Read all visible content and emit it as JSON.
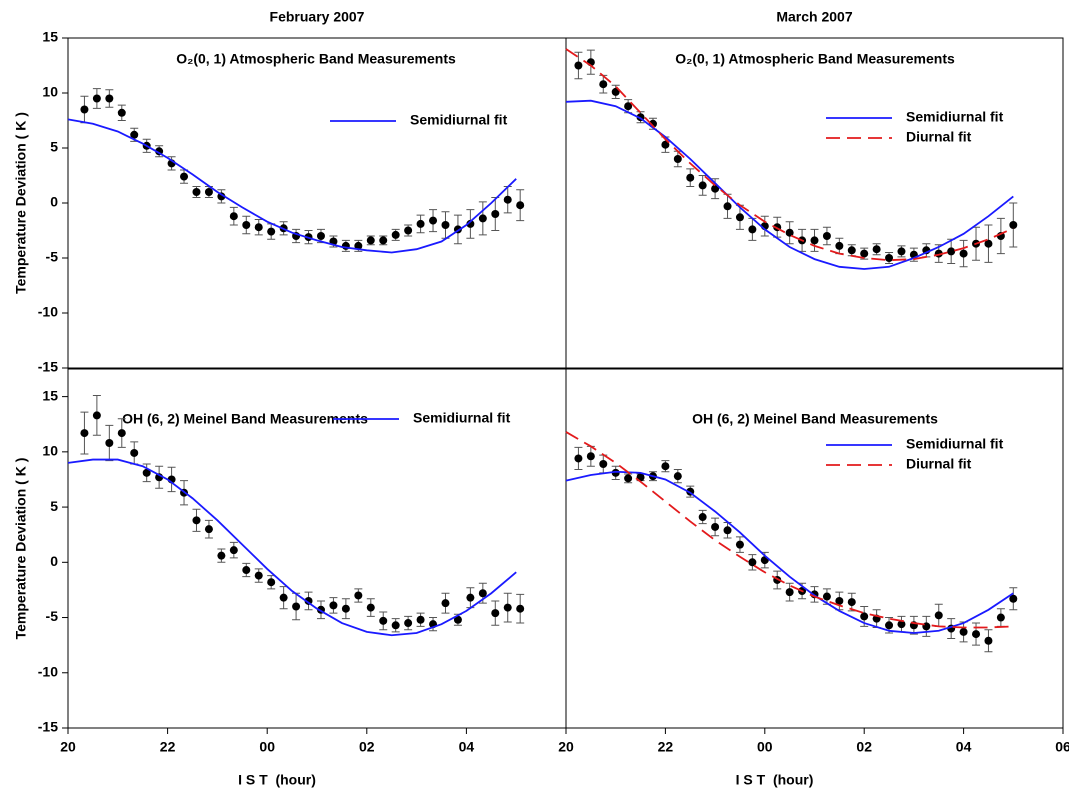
{
  "chart_data": [
    {
      "type": "scatter",
      "title": "February 2007",
      "annotation": "O₂(0, 1) Atmospheric Band Measurements",
      "ylabel": "Temperature Deviation ( K )",
      "xlim": [
        20,
        30
      ],
      "ylim": [
        -15,
        15
      ],
      "yticks": [
        -15,
        -10,
        -5,
        0,
        5,
        10,
        15
      ],
      "series": [
        {
          "color": "#000000",
          "x": [
            20.33,
            20.58,
            20.83,
            21.08,
            21.33,
            21.58,
            21.83,
            22.08,
            22.33,
            22.58,
            22.83,
            23.08,
            23.33,
            23.58,
            23.83,
            24.08,
            24.33,
            24.58,
            24.83,
            25.08,
            25.33,
            25.58,
            25.83,
            26.08,
            26.33,
            26.58,
            26.83,
            27.08,
            27.33,
            27.58,
            27.83,
            28.08,
            28.33,
            28.58,
            28.83,
            29.08
          ],
          "values": [
            8.5,
            9.5,
            9.5,
            8.2,
            6.2,
            5.2,
            4.7,
            3.6,
            2.4,
            1.0,
            1.0,
            0.6,
            -1.2,
            -2.0,
            -2.2,
            -2.6,
            -2.3,
            -3.0,
            -3.1,
            -3.0,
            -3.5,
            -3.9,
            -3.9,
            -3.4,
            -3.4,
            -2.9,
            -2.5,
            -1.9,
            -1.6,
            -2.0,
            -2.4,
            -1.9,
            -1.4,
            -1.0,
            0.3,
            -0.2
          ],
          "errors": [
            1.2,
            0.9,
            0.8,
            0.7,
            0.6,
            0.6,
            0.5,
            0.6,
            0.6,
            0.5,
            0.5,
            0.6,
            0.8,
            0.8,
            0.7,
            0.7,
            0.6,
            0.6,
            0.6,
            0.6,
            0.5,
            0.5,
            0.5,
            0.4,
            0.4,
            0.5,
            0.5,
            0.8,
            1.0,
            1.2,
            1.3,
            1.3,
            1.5,
            1.5,
            1.2,
            1.4
          ]
        },
        {
          "name": "Semidiurnal fit",
          "color": "#1a1aff",
          "x": [
            20,
            20.5,
            21,
            21.5,
            22,
            22.5,
            23,
            23.5,
            24,
            24.5,
            25,
            25.5,
            26,
            26.5,
            27,
            27.5,
            28,
            28.5,
            29
          ],
          "values": [
            7.6,
            7.2,
            6.5,
            5.4,
            4.1,
            2.6,
            1.0,
            -0.4,
            -1.7,
            -2.7,
            -3.4,
            -4.0,
            -4.3,
            -4.5,
            -4.2,
            -3.5,
            -2.0,
            0.0,
            2.2
          ]
        }
      ]
    },
    {
      "type": "scatter",
      "title": "March 2007",
      "annotation": "O₂(0, 1) Atmospheric Band Measurements",
      "xlim": [
        20,
        30
      ],
      "ylim": [
        -15,
        15
      ],
      "series": [
        {
          "color": "#000000",
          "x": [
            20.25,
            20.5,
            20.75,
            21,
            21.25,
            21.5,
            21.75,
            22,
            22.25,
            22.5,
            22.75,
            23,
            23.25,
            23.5,
            23.75,
            24,
            24.25,
            24.5,
            24.75,
            25,
            25.25,
            25.5,
            25.75,
            26,
            26.25,
            26.5,
            26.75,
            27,
            27.25,
            27.5,
            27.75,
            28,
            28.25,
            28.5,
            28.75,
            29
          ],
          "values": [
            12.5,
            12.8,
            10.8,
            10.1,
            8.8,
            7.8,
            7.2,
            5.3,
            4.0,
            2.3,
            1.6,
            1.3,
            -0.3,
            -1.3,
            -2.4,
            -2.1,
            -2.2,
            -2.7,
            -3.4,
            -3.4,
            -3.0,
            -3.9,
            -4.3,
            -4.6,
            -4.2,
            -5.0,
            -4.4,
            -4.7,
            -4.3,
            -4.6,
            -4.4,
            -4.6,
            -3.7,
            -3.7,
            -3.0,
            -2.0
          ],
          "errors": [
            1.2,
            1.1,
            0.8,
            0.6,
            0.6,
            0.5,
            0.5,
            0.7,
            0.7,
            0.8,
            0.9,
            0.9,
            1.1,
            1.1,
            1.0,
            0.9,
            0.9,
            1.0,
            1.0,
            1.0,
            0.8,
            0.7,
            0.5,
            0.5,
            0.5,
            0.5,
            0.5,
            0.6,
            0.6,
            0.8,
            1.1,
            1.2,
            1.5,
            1.7,
            1.6,
            2.0
          ]
        },
        {
          "name": "Semidiurnal fit",
          "color": "#1a1aff",
          "x": [
            20,
            20.5,
            21,
            21.5,
            22,
            22.5,
            23,
            23.5,
            24,
            24.5,
            25,
            25.5,
            26,
            26.5,
            27,
            27.5,
            28,
            28.5,
            29
          ],
          "values": [
            9.2,
            9.3,
            8.8,
            7.7,
            6.0,
            4.0,
            1.8,
            -0.4,
            -2.4,
            -4.0,
            -5.1,
            -5.8,
            -6.0,
            -5.8,
            -5.0,
            -4.0,
            -2.8,
            -1.2,
            0.6
          ]
        },
        {
          "name": "Diurnal fit",
          "color": "#e31a1c",
          "dash": true,
          "x": [
            20,
            20.5,
            21,
            21.5,
            22,
            22.5,
            23,
            23.5,
            24,
            24.5,
            25,
            25.5,
            26,
            26.5,
            27,
            27.5,
            28,
            28.5,
            29
          ],
          "values": [
            14.0,
            12.5,
            10.6,
            8.2,
            5.8,
            3.6,
            1.6,
            -0.2,
            -1.7,
            -2.9,
            -3.9,
            -4.6,
            -5.0,
            -5.2,
            -5.1,
            -4.7,
            -4.1,
            -3.3,
            -2.3
          ]
        }
      ]
    },
    {
      "type": "scatter",
      "annotation": "OH (6, 2) Meinel Band Measurements",
      "ylabel": "Temperature Deviation ( K )",
      "xlabel": "I S T  (hour)",
      "xlim": [
        20,
        30
      ],
      "ylim": [
        -15,
        17.5
      ],
      "yticks": [
        -15,
        -10,
        -5,
        0,
        5,
        10,
        15
      ],
      "xticks": [
        {
          "value": 20,
          "label": "20"
        },
        {
          "value": 22,
          "label": "22"
        },
        {
          "value": 24,
          "label": "00"
        },
        {
          "value": 26,
          "label": "02"
        },
        {
          "value": 28,
          "label": "04"
        }
      ],
      "series": [
        {
          "color": "#000000",
          "x": [
            20.33,
            20.58,
            20.83,
            21.08,
            21.33,
            21.58,
            21.83,
            22.08,
            22.33,
            22.58,
            22.83,
            23.08,
            23.33,
            23.58,
            23.83,
            24.08,
            24.33,
            24.58,
            24.83,
            25.08,
            25.33,
            25.58,
            25.83,
            26.08,
            26.33,
            26.58,
            26.83,
            27.08,
            27.33,
            27.58,
            27.83,
            28.08,
            28.33,
            28.58,
            28.83,
            29.08
          ],
          "values": [
            11.7,
            13.3,
            10.8,
            11.7,
            9.9,
            8.1,
            7.7,
            7.5,
            6.3,
            3.8,
            3.0,
            0.6,
            1.1,
            -0.7,
            -1.2,
            -1.8,
            -3.2,
            -4.0,
            -3.5,
            -4.3,
            -3.9,
            -4.2,
            -3.0,
            -4.1,
            -5.3,
            -5.7,
            -5.5,
            -5.2,
            -5.6,
            -3.7,
            -5.2,
            -3.2,
            -2.8,
            -4.6,
            -4.1,
            -4.2
          ],
          "errors": [
            1.9,
            1.8,
            1.6,
            1.3,
            1.0,
            0.8,
            1.0,
            1.1,
            1.1,
            1.0,
            0.8,
            0.6,
            0.7,
            0.6,
            0.6,
            0.6,
            1.0,
            1.2,
            0.8,
            0.8,
            0.7,
            0.9,
            0.6,
            0.8,
            0.8,
            0.6,
            0.6,
            0.6,
            0.6,
            0.9,
            0.5,
            0.9,
            0.9,
            1.1,
            1.3,
            1.3
          ]
        },
        {
          "name": "Semidiurnal fit",
          "color": "#1a1aff",
          "x": [
            20,
            20.5,
            21,
            21.5,
            22,
            22.5,
            23,
            23.5,
            24,
            24.5,
            25,
            25.5,
            26,
            26.5,
            27,
            27.5,
            28,
            28.5,
            29
          ],
          "values": [
            9.0,
            9.3,
            9.3,
            8.7,
            7.5,
            5.8,
            3.8,
            1.6,
            -0.6,
            -2.6,
            -4.2,
            -5.5,
            -6.3,
            -6.6,
            -6.4,
            -5.6,
            -4.4,
            -2.8,
            -0.9
          ]
        }
      ]
    },
    {
      "type": "scatter",
      "annotation": "OH (6, 2) Meinel Band Measurements",
      "xlabel": "I S T  (hour)",
      "xlim": [
        20,
        30
      ],
      "ylim": [
        -15,
        17.5
      ],
      "xticks": [
        {
          "value": 20,
          "label": "20"
        },
        {
          "value": 22,
          "label": "22"
        },
        {
          "value": 24,
          "label": "00"
        },
        {
          "value": 26,
          "label": "02"
        },
        {
          "value": 28,
          "label": "04"
        },
        {
          "value": 30,
          "label": "06"
        }
      ],
      "series": [
        {
          "color": "#000000",
          "x": [
            20.25,
            20.5,
            20.75,
            21,
            21.25,
            21.5,
            21.75,
            22,
            22.25,
            22.5,
            22.75,
            23,
            23.25,
            23.5,
            23.75,
            24,
            24.25,
            24.5,
            24.75,
            25,
            25.25,
            25.5,
            25.75,
            26,
            26.25,
            26.5,
            26.75,
            27,
            27.25,
            27.5,
            27.75,
            28,
            28.25,
            28.5,
            28.75,
            29
          ],
          "values": [
            9.4,
            9.6,
            8.9,
            8.1,
            7.6,
            7.7,
            7.8,
            8.7,
            7.8,
            6.4,
            4.1,
            3.2,
            2.9,
            1.6,
            0.0,
            0.2,
            -1.6,
            -2.7,
            -2.6,
            -2.9,
            -3.1,
            -3.5,
            -3.6,
            -4.9,
            -5.1,
            -5.7,
            -5.6,
            -5.7,
            -5.8,
            -4.8,
            -6.0,
            -6.3,
            -6.5,
            -7.1,
            -5.0,
            -3.3
          ],
          "errors": [
            1.0,
            0.9,
            0.8,
            0.6,
            0.4,
            0.3,
            0.4,
            0.5,
            0.6,
            0.5,
            0.6,
            0.8,
            0.7,
            0.7,
            0.7,
            0.7,
            0.8,
            0.8,
            0.7,
            0.7,
            0.7,
            0.8,
            0.8,
            0.9,
            0.8,
            0.7,
            0.7,
            0.8,
            0.9,
            1.0,
            0.9,
            0.9,
            1.0,
            1.0,
            0.8,
            1.0
          ]
        },
        {
          "name": "Semidiurnal fit",
          "color": "#1a1aff",
          "x": [
            20,
            20.5,
            21,
            21.5,
            22,
            22.5,
            23,
            23.5,
            24,
            24.5,
            25,
            25.5,
            26,
            26.5,
            27,
            27.5,
            28,
            28.5,
            29
          ],
          "values": [
            7.4,
            7.9,
            8.2,
            8.1,
            7.5,
            6.3,
            4.6,
            2.7,
            0.6,
            -1.3,
            -3.0,
            -4.4,
            -5.5,
            -6.2,
            -6.4,
            -6.2,
            -5.5,
            -4.3,
            -2.8
          ]
        },
        {
          "name": "Diurnal fit",
          "color": "#e31a1c",
          "dash": true,
          "x": [
            20,
            20.5,
            21,
            21.5,
            22,
            22.5,
            23,
            23.5,
            24,
            24.5,
            25,
            25.5,
            26,
            26.5,
            27,
            27.5,
            28,
            28.5,
            29
          ],
          "values": [
            11.8,
            10.5,
            9.0,
            7.3,
            5.5,
            3.7,
            2.0,
            0.5,
            -0.9,
            -2.1,
            -3.1,
            -3.9,
            -4.6,
            -5.1,
            -5.5,
            -5.8,
            -5.9,
            -5.9,
            -5.8
          ]
        }
      ]
    }
  ]
}
